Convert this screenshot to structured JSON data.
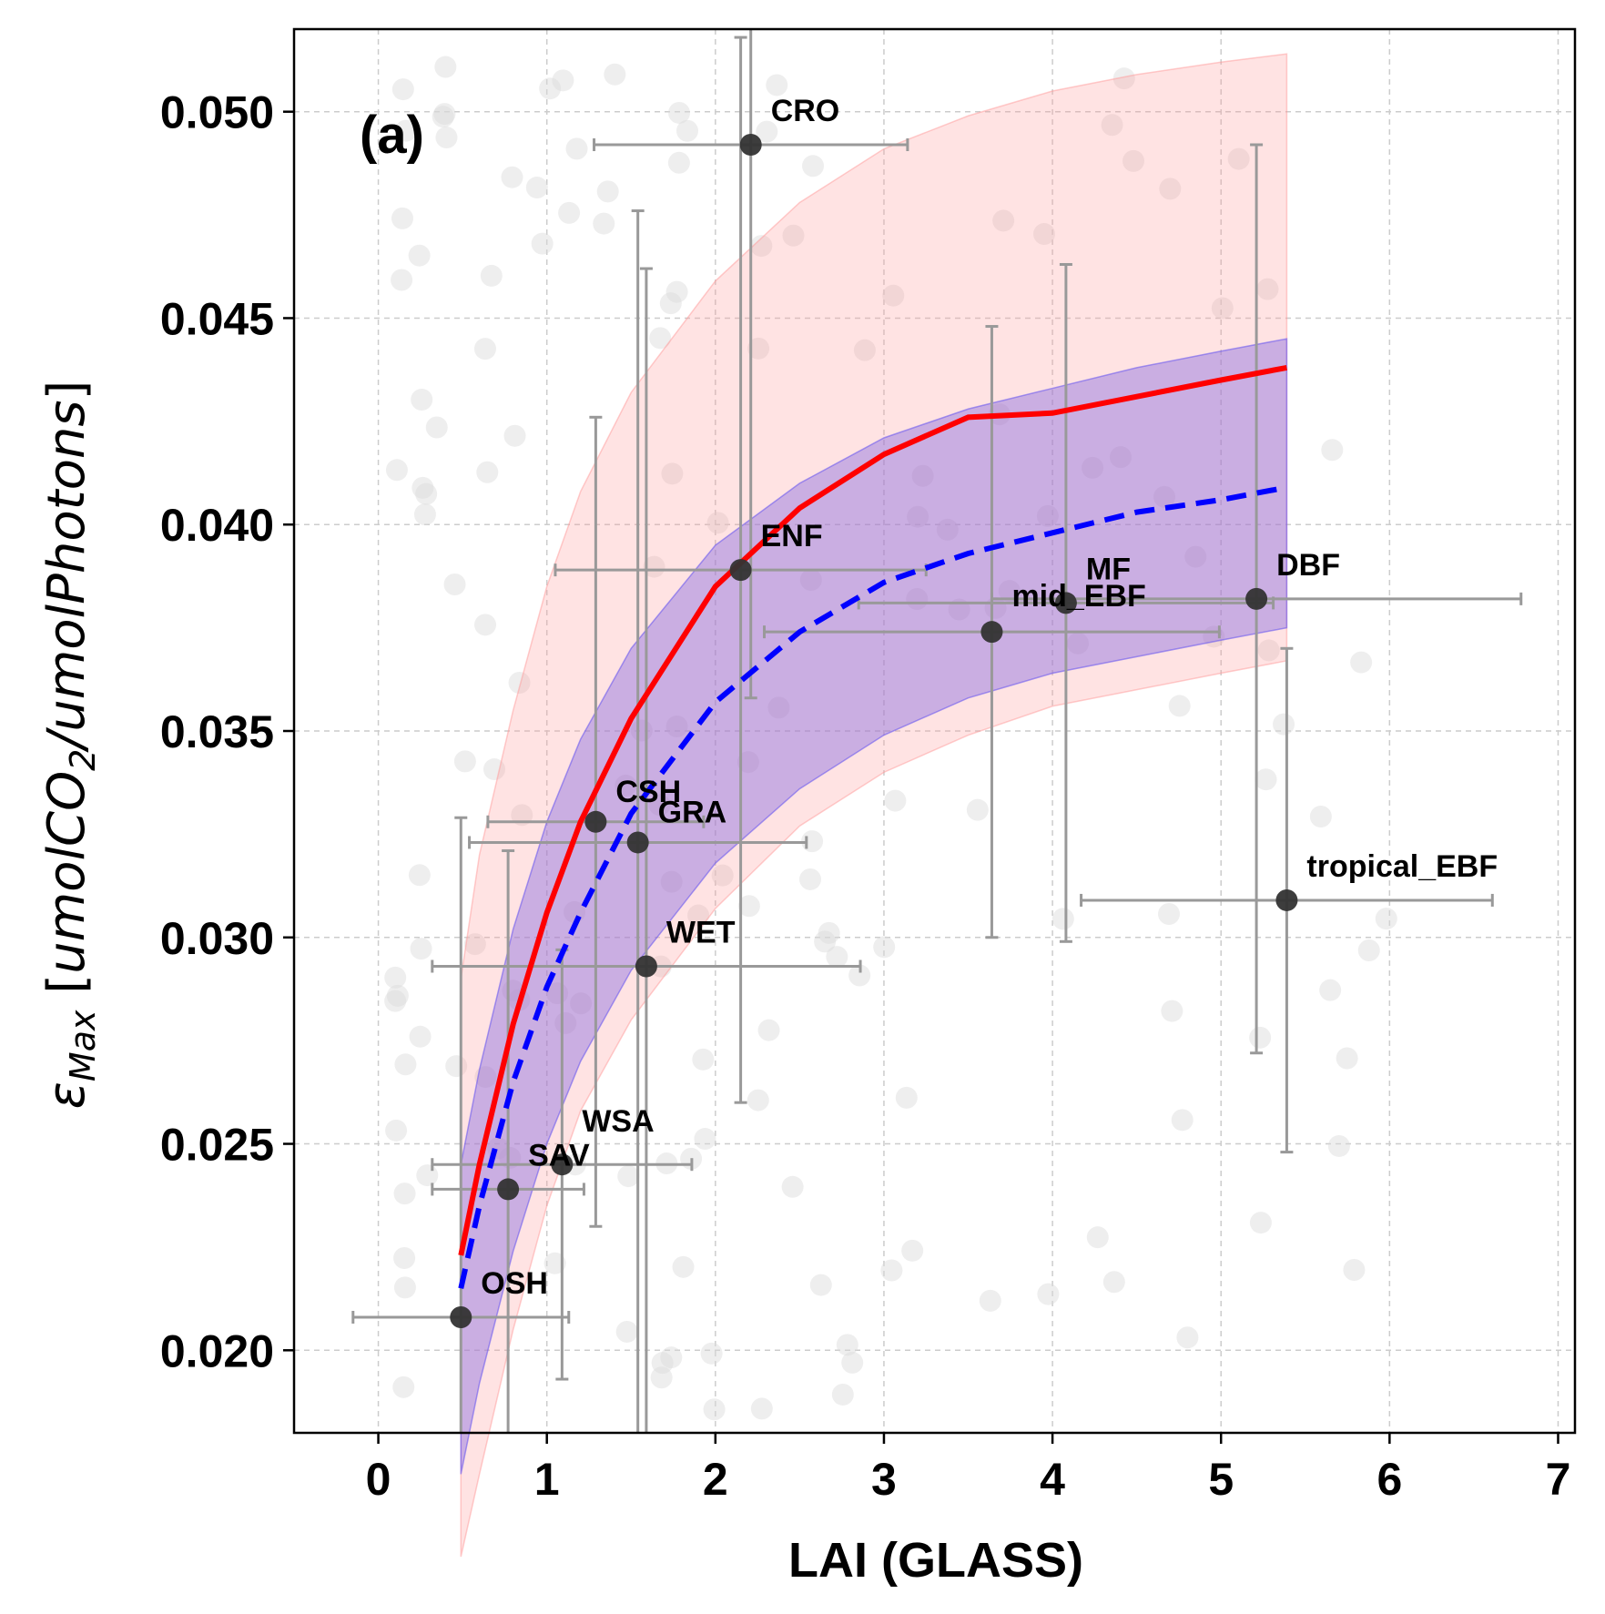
{
  "chart_data": {
    "type": "scatter",
    "panel_label": "(a)",
    "xlabel": "LAI (GLASS)",
    "ylabel": {
      "symbol": "ε",
      "subscript": "Max",
      "unit_open": " [",
      "unit_italic_1": "umolCO",
      "unit_sub": "2",
      "unit_italic_2": "/umolPhotons",
      "unit_close": "]"
    },
    "xlim": [
      -0.5,
      7.1
    ],
    "ylim": [
      0.018,
      0.052
    ],
    "xticks": [
      {
        "value": 0,
        "label": "0"
      },
      {
        "value": 1,
        "label": "1"
      },
      {
        "value": 2,
        "label": "2"
      },
      {
        "value": 3,
        "label": "3"
      },
      {
        "value": 4,
        "label": "4"
      },
      {
        "value": 5,
        "label": "5"
      },
      {
        "value": 6,
        "label": "6"
      },
      {
        "value": 7,
        "label": "7"
      }
    ],
    "yticks": [
      {
        "value": 0.02,
        "label": "0.020"
      },
      {
        "value": 0.025,
        "label": "0.025"
      },
      {
        "value": 0.03,
        "label": "0.030"
      },
      {
        "value": 0.035,
        "label": "0.035"
      },
      {
        "value": 0.04,
        "label": "0.040"
      },
      {
        "value": 0.045,
        "label": "0.045"
      },
      {
        "value": 0.05,
        "label": "0.050"
      }
    ],
    "grid": true,
    "colors": {
      "fit_solid": "#ff0000",
      "fit_dashed": "#0000ff",
      "band_outer": "#ff9999",
      "band_inner": "#8a6de0",
      "points": "#333333",
      "errorbars": "#999999",
      "background_points": "#d9d9d9"
    },
    "groups": [
      {
        "label": "OSH",
        "x": 0.49,
        "y": 0.0208,
        "xerr": 0.64,
        "yerr_low": 0.0048,
        "yerr_high": 0.0121
      },
      {
        "label": "SAV",
        "x": 0.77,
        "y": 0.0239,
        "xerr": 0.45,
        "yerr_low": 0.0069,
        "yerr_high": 0.0082
      },
      {
        "label": "WSA",
        "x": 1.09,
        "y": 0.0245,
        "xerr": 0.77,
        "yerr_low": 0.0052,
        "yerr_high": 0.0052
      },
      {
        "label": "CSH",
        "x": 1.29,
        "y": 0.0328,
        "xerr": 0.64,
        "yerr_low": 0.0098,
        "yerr_high": 0.0098
      },
      {
        "label": "GRA",
        "x": 1.54,
        "y": 0.0323,
        "xerr": 1.0,
        "yerr_low": 0.0153,
        "yerr_high": 0.0153
      },
      {
        "label": "WET",
        "x": 1.59,
        "y": 0.0293,
        "xerr": 1.27,
        "yerr_low": 0.0169,
        "yerr_high": 0.0169
      },
      {
        "label": "ENF",
        "x": 2.15,
        "y": 0.0389,
        "xerr": 1.1,
        "yerr_low": 0.0129,
        "yerr_high": 0.0129
      },
      {
        "label": "CRO",
        "x": 2.21,
        "y": 0.0492,
        "xerr": 0.93,
        "yerr_low": 0.0134,
        "yerr_high": 0.0134
      },
      {
        "label": "mid_EBF",
        "x": 3.64,
        "y": 0.0374,
        "xerr": 1.35,
        "yerr_low": 0.0074,
        "yerr_high": 0.0074
      },
      {
        "label": "MF",
        "x": 4.08,
        "y": 0.0381,
        "xerr": 1.23,
        "yerr_low": 0.0082,
        "yerr_high": 0.0082
      },
      {
        "label": "DBF",
        "x": 5.21,
        "y": 0.0382,
        "xerr": 1.57,
        "yerr_low": 0.011,
        "yerr_high": 0.011
      },
      {
        "label": "tropical_EBF",
        "x": 5.39,
        "y": 0.0309,
        "xerr": 1.22,
        "yerr_low": 0.0061,
        "yerr_high": 0.0061
      }
    ],
    "fit_solid": {
      "x": [
        0.49,
        0.6,
        0.8,
        1.0,
        1.2,
        1.5,
        2.0,
        2.5,
        3.0,
        3.5,
        4.0,
        4.5,
        5.0,
        5.39
      ],
      "y": [
        0.0223,
        0.0245,
        0.0279,
        0.0306,
        0.0328,
        0.0353,
        0.0385,
        0.0404,
        0.0417,
        0.0426,
        0.0427,
        0.0431,
        0.0435,
        0.0438
      ]
    },
    "fit_dashed": {
      "x": [
        0.49,
        0.6,
        0.8,
        1.0,
        1.2,
        1.5,
        2.0,
        2.5,
        3.0,
        3.5,
        4.0,
        4.5,
        5.0,
        5.39
      ],
      "y": [
        0.0215,
        0.0235,
        0.0265,
        0.0288,
        0.0306,
        0.033,
        0.0357,
        0.0374,
        0.0386,
        0.0393,
        0.0398,
        0.0403,
        0.0406,
        0.0409
      ]
    },
    "band_outer": {
      "x": [
        0.49,
        0.6,
        0.8,
        1.0,
        1.2,
        1.5,
        2.0,
        2.5,
        3.0,
        3.5,
        4.0,
        4.5,
        5.0,
        5.39
      ],
      "lower": [
        0.015,
        0.017,
        0.0205,
        0.0235,
        0.0258,
        0.028,
        0.0307,
        0.0327,
        0.034,
        0.0349,
        0.0356,
        0.036,
        0.0364,
        0.0367
      ],
      "upper": [
        0.029,
        0.032,
        0.0355,
        0.0385,
        0.0408,
        0.0432,
        0.0459,
        0.0478,
        0.0491,
        0.0499,
        0.0505,
        0.0509,
        0.0512,
        0.0514
      ]
    },
    "band_inner": {
      "x": [
        0.49,
        0.6,
        0.8,
        1.0,
        1.2,
        1.5,
        2.0,
        2.5,
        3.0,
        3.5,
        4.0,
        4.5,
        5.0,
        5.39
      ],
      "lower": [
        0.017,
        0.0192,
        0.0224,
        0.025,
        0.027,
        0.0292,
        0.0318,
        0.0336,
        0.0349,
        0.0358,
        0.0364,
        0.0368,
        0.0372,
        0.0375
      ],
      "upper": [
        0.0245,
        0.0268,
        0.0302,
        0.0328,
        0.0348,
        0.037,
        0.0395,
        0.041,
        0.0421,
        0.0428,
        0.0433,
        0.0438,
        0.0442,
        0.0445
      ]
    }
  }
}
